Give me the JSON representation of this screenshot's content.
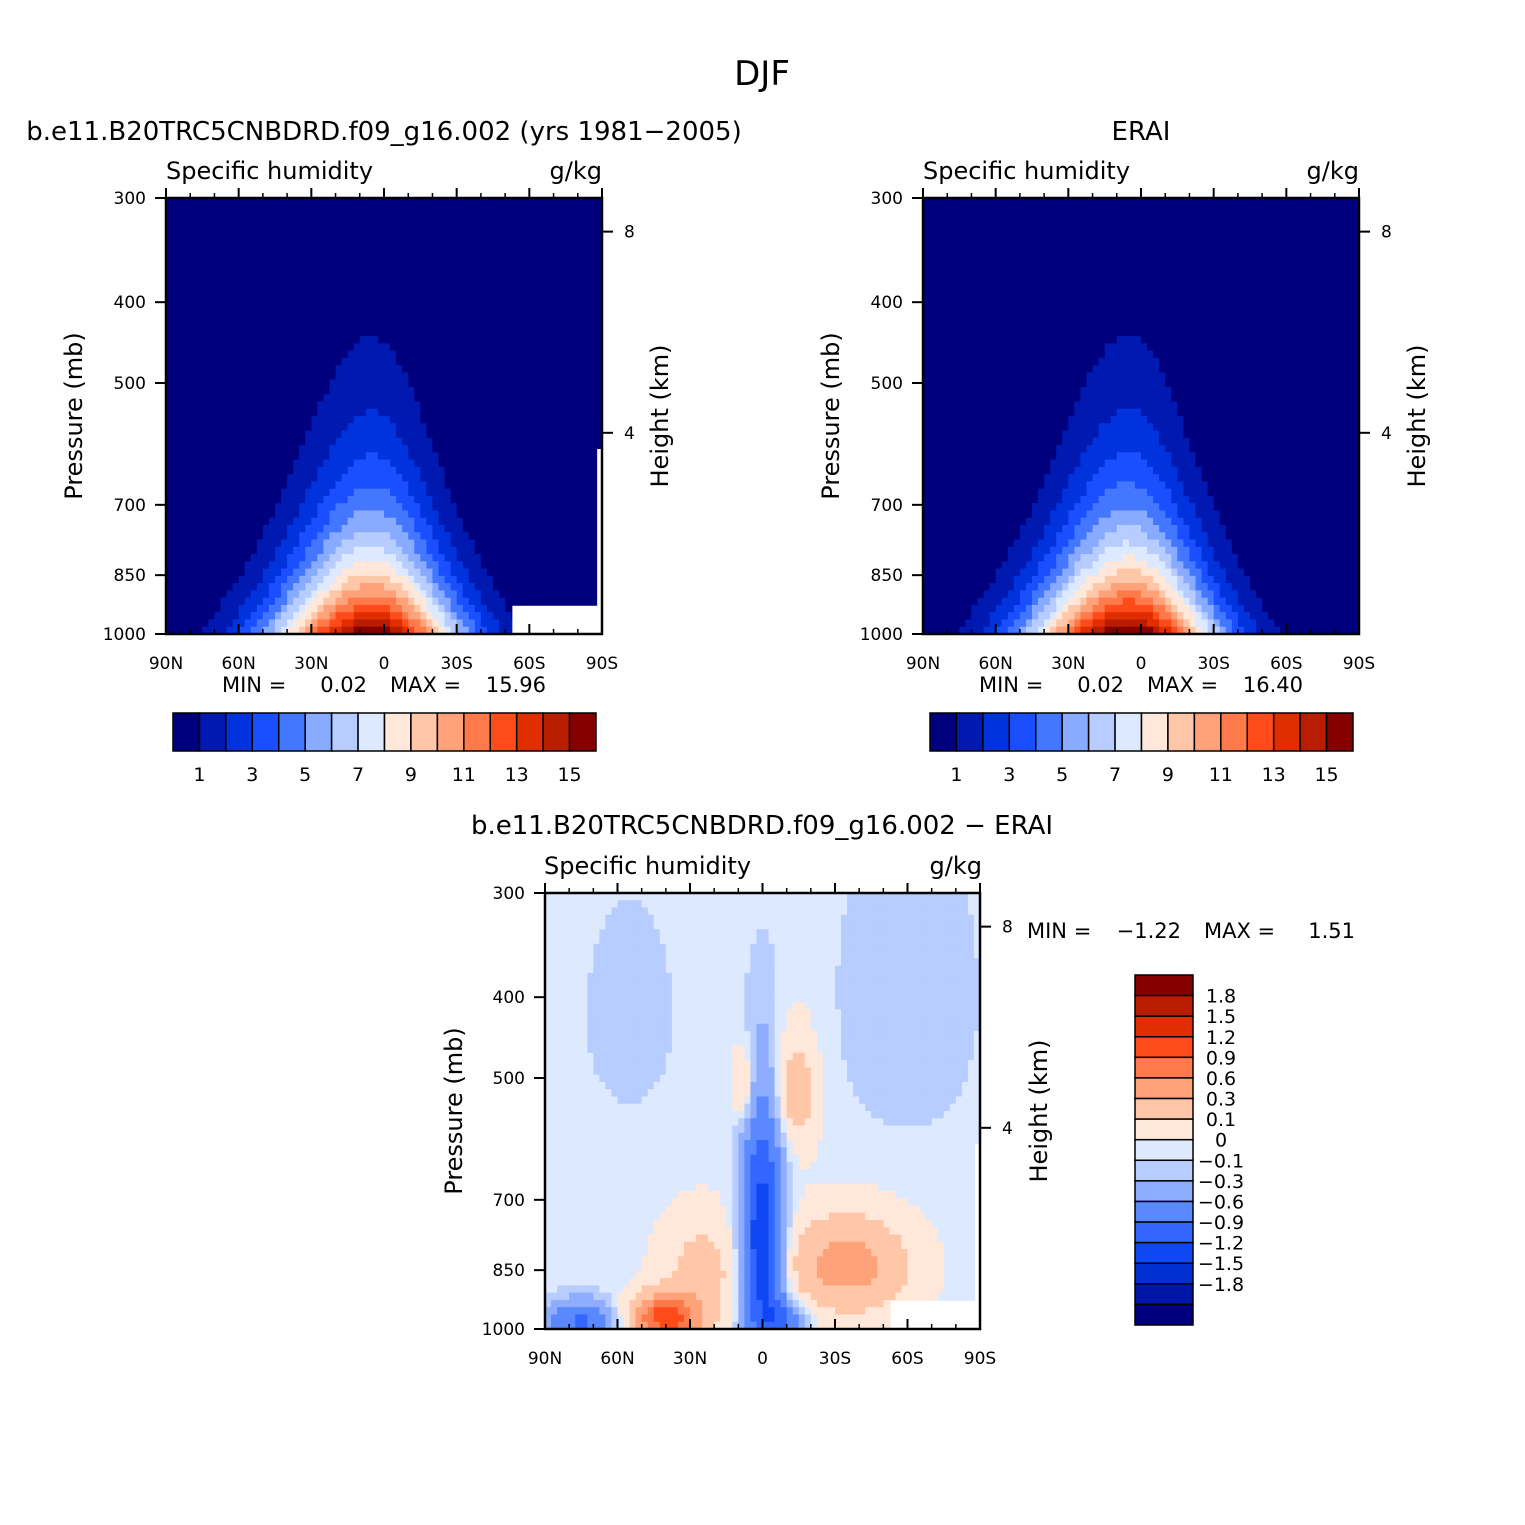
{
  "figure": {
    "title": "DJF"
  },
  "panels": [
    {
      "title": "b.e11.B20TRC5CNBDRD.f09_g16.002 (yrs 1981−2005)",
      "variable": "Specific humidity",
      "units": "g/kg",
      "ylabel_left": "Pressure (mb)",
      "ylabel_right": "Height (km)",
      "min_label": "MIN =",
      "min_value": "0.02",
      "max_label": "MAX =",
      "max_value": "15.96"
    },
    {
      "title": "ERAI",
      "variable": "Specific humidity",
      "units": "g/kg",
      "ylabel_left": "Pressure (mb)",
      "ylabel_right": "Height (km)",
      "min_label": "MIN =",
      "min_value": "0.02",
      "max_label": "MAX =",
      "max_value": "16.40"
    },
    {
      "title": "b.e11.B20TRC5CNBDRD.f09_g16.002 − ERAI",
      "variable": "Specific humidity",
      "units": "g/kg",
      "ylabel_left": "Pressure (mb)",
      "ylabel_right": "Height (km)",
      "min_label": "MIN =",
      "min_value": "−1.22",
      "max_label": "MAX =",
      "max_value": "1.51"
    }
  ],
  "chart_data": [
    {
      "type": "heatmap",
      "title": "b.e11.B20TRC5CNBDRD.f09_g16.002 (yrs 1981−2005)",
      "subtitle": "Specific humidity",
      "units": "g/kg",
      "xlabel": "",
      "ylabel": "Pressure (mb)",
      "ylabel_right": "Height (km)",
      "x_ticks": [
        "90N",
        "60N",
        "30N",
        "0",
        "30S",
        "60S",
        "90S"
      ],
      "y_ticks": [
        "300",
        "400",
        "500",
        "700",
        "850",
        "1000"
      ],
      "y_ticks_right": [
        "8",
        "4"
      ],
      "xlim": [
        90,
        -90
      ],
      "ylim": [
        1000,
        300
      ],
      "y_scale": "log",
      "field": {
        "peak_lat": 5,
        "peak_value": 15.96,
        "min_value": 0.02
      },
      "colorbar": {
        "orientation": "horizontal",
        "labels": [
          "1",
          "3",
          "5",
          "7",
          "9",
          "11",
          "13",
          "15"
        ]
      },
      "min": 0.02,
      "max": 15.96
    },
    {
      "type": "heatmap",
      "title": "ERAI",
      "subtitle": "Specific humidity",
      "units": "g/kg",
      "xlabel": "",
      "ylabel": "Pressure (mb)",
      "ylabel_right": "Height (km)",
      "x_ticks": [
        "90N",
        "60N",
        "30N",
        "0",
        "30S",
        "60S",
        "90S"
      ],
      "y_ticks": [
        "300",
        "400",
        "500",
        "700",
        "850",
        "1000"
      ],
      "y_ticks_right": [
        "8",
        "4"
      ],
      "xlim": [
        90,
        -90
      ],
      "ylim": [
        1000,
        300
      ],
      "y_scale": "log",
      "field": {
        "peak_lat": 5,
        "peak_value": 16.4,
        "min_value": 0.02
      },
      "colorbar": {
        "orientation": "horizontal",
        "labels": [
          "1",
          "3",
          "5",
          "7",
          "9",
          "11",
          "13",
          "15"
        ]
      },
      "min": 0.02,
      "max": 16.4
    },
    {
      "type": "heatmap",
      "title": "b.e11.B20TRC5CNBDRD.f09_g16.002 − ERAI",
      "subtitle": "Specific humidity",
      "units": "g/kg",
      "xlabel": "",
      "ylabel": "Pressure (mb)",
      "ylabel_right": "Height (km)",
      "x_ticks": [
        "90N",
        "60N",
        "30N",
        "0",
        "30S",
        "60S",
        "90S"
      ],
      "y_ticks": [
        "300",
        "400",
        "500",
        "700",
        "850",
        "1000"
      ],
      "y_ticks_right": [
        "8",
        "4"
      ],
      "xlim": [
        90,
        -90
      ],
      "ylim": [
        1000,
        300
      ],
      "y_scale": "log",
      "colorbar": {
        "orientation": "vertical",
        "labels": [
          "1.8",
          "1.5",
          "1.2",
          "0.9",
          "0.6",
          "0.3",
          "0.1",
          "0",
          "−0.1",
          "−0.3",
          "−0.6",
          "−0.9",
          "−1.2",
          "−1.5",
          "−1.8"
        ]
      },
      "min": -1.22,
      "max": 1.51
    }
  ],
  "colors": {
    "abs_levels": [
      "#00007f",
      "#0019b0",
      "#0033dd",
      "#1a4fff",
      "#4477ff",
      "#88aaff",
      "#b7ccff",
      "#dce9ff",
      "#ffe8da",
      "#ffc6a8",
      "#ffa27a",
      "#ff7a4a",
      "#ff4b1a",
      "#e12e00",
      "#b81d00",
      "#850000"
    ],
    "diff_levels": [
      "#00007f",
      "#0016a8",
      "#0030d4",
      "#1047f4",
      "#3366ff",
      "#5a88ff",
      "#8eadff",
      "#b7ccff",
      "#dce9ff",
      "#ffe8da",
      "#ffc6a8",
      "#ffa27a",
      "#ff7a4a",
      "#ff4b1a",
      "#e12e00",
      "#b81d00",
      "#850000"
    ]
  }
}
